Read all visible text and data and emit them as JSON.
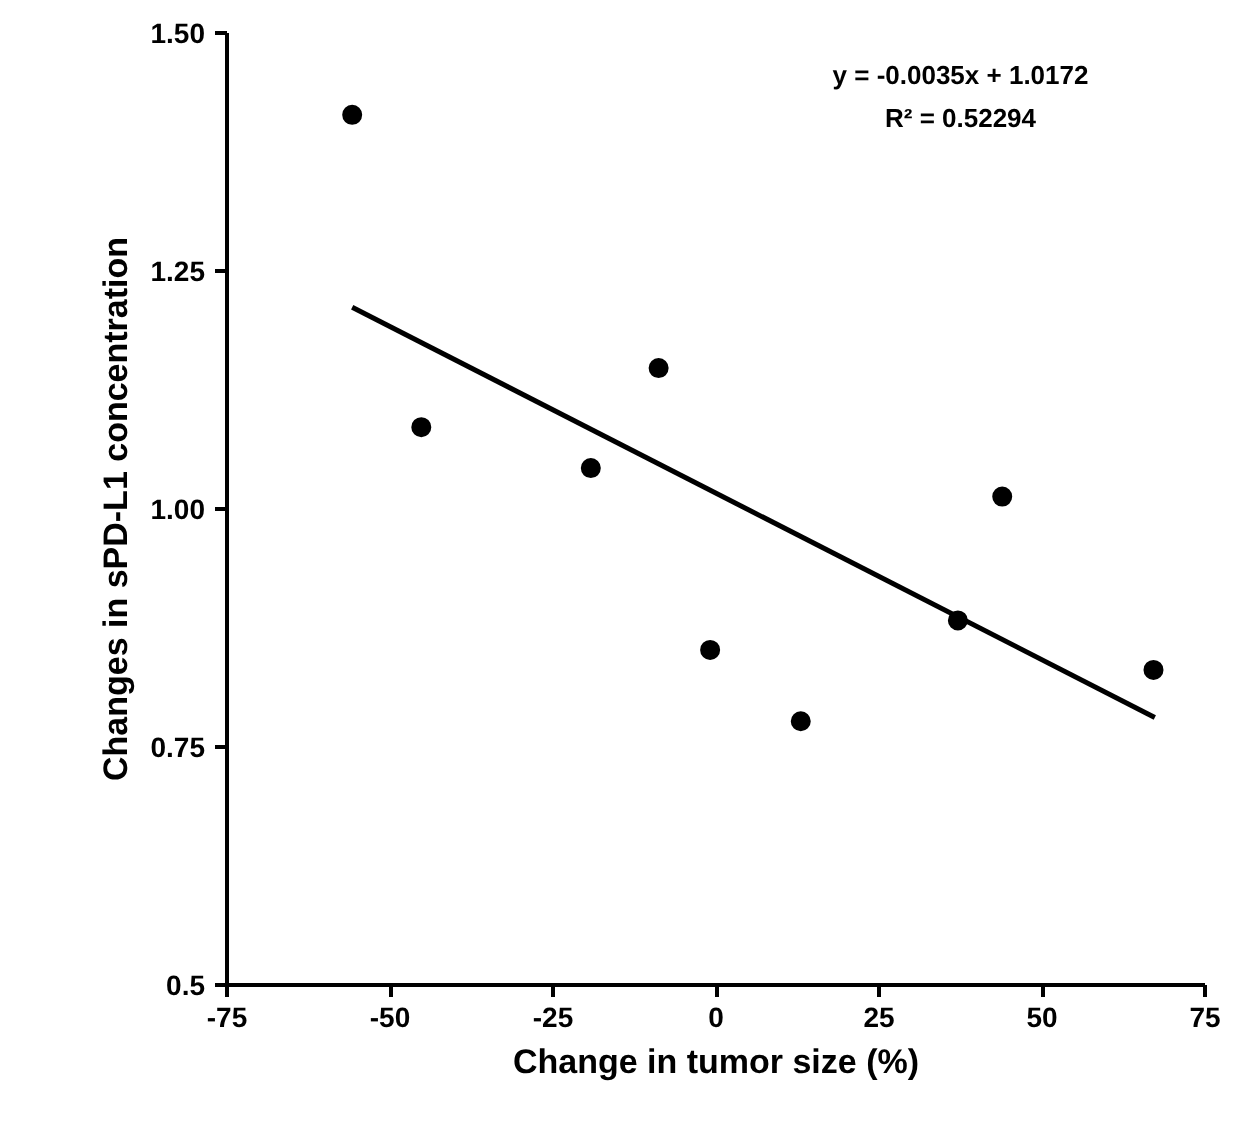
{
  "chart_data": {
    "type": "scatter",
    "xlabel": "Change in tumor size (%)",
    "ylabel": "Changes in sPD-L1 concentration",
    "series": [
      {
        "marker": "circle",
        "color": "#000000",
        "x": [
          -55.8,
          -45.2,
          -19.2,
          -8.8,
          -0.9,
          13.0,
          37.1,
          43.9,
          67.1
        ],
        "values": [
          1.414,
          1.086,
          1.043,
          1.148,
          0.852,
          0.777,
          0.883,
          1.013,
          0.831
        ]
      },
      {
        "type": "line",
        "color": "#000000",
        "x": [
          -55.8,
          67.3
        ],
        "values": [
          1.212,
          0.781
        ]
      }
    ],
    "xlim": [
      -75,
      75
    ],
    "xticks": [
      -75,
      -50,
      -25,
      0,
      25,
      50,
      75
    ],
    "ylim": [
      0.5,
      1.5
    ],
    "yticks": [
      {
        "value": 0.5,
        "label": "0.5"
      },
      {
        "value": 0.75,
        "label": "0.75"
      },
      {
        "value": 1.0,
        "label": "1.00"
      },
      {
        "value": 1.25,
        "label": "1.25"
      },
      {
        "value": 1.5,
        "label": "1.50"
      }
    ],
    "annotations": [
      "y = -0.0035x + 1.0172",
      "R² = 0.52294"
    ],
    "grid": false
  }
}
